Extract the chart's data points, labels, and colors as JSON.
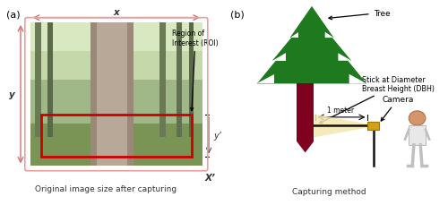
{
  "fig_width": 5.0,
  "fig_height": 2.3,
  "dpi": 100,
  "bg_color": "#ffffff",
  "panel_a_label": "(a)",
  "panel_b_label": "(b)",
  "caption_a": "Original image size after capturing",
  "caption_b": "Capturing method",
  "roi_label": "Region of\nInterest (ROI)",
  "x_label": "x",
  "y_label": "y",
  "xprime_label": "X’",
  "yprime_label": "y’",
  "tree_label": "Tree",
  "stick_label": "Stick at Diameter\nBreast Height (DBH)",
  "camera_label": "Camera",
  "meter_label": "1 meter",
  "tree_green": "#1f7a1f",
  "trunk_dark_red": "#800020",
  "camera_gold": "#d4a017",
  "photo_border_color": "#cc0000",
  "outer_border_color": "#e8a0a0",
  "person_body_color": "#e8e8e8",
  "person_head_color": "#d4956a",
  "cone_color": "#f5e6b0",
  "lshape_color": "#111111"
}
